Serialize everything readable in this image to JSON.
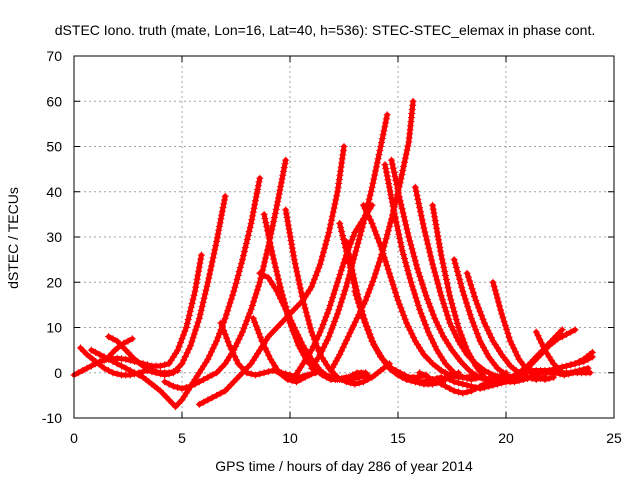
{
  "chart_data": {
    "type": "scatter",
    "title": "dSTEC Iono. truth (mate, Lon=16, Lat=40, h=536): STEC-STEC_elemax in phase cont.",
    "xlabel": "GPS time / hours of day 286 of year 2014",
    "ylabel": "dSTEC  / TECUs",
    "xlim": [
      0,
      25
    ],
    "ylim": [
      -10,
      70
    ],
    "xticks": [
      0,
      5,
      10,
      15,
      20,
      25
    ],
    "yticks": [
      -10,
      0,
      10,
      20,
      30,
      40,
      50,
      60,
      70
    ],
    "grid": true,
    "marker": "+",
    "color": "#ff0000",
    "series": [
      {
        "x": [
          0,
          0.4,
          0.8,
          1.2,
          1.6,
          2.0,
          2.4,
          2.8,
          3.2,
          3.6,
          4.0,
          4.4,
          4.8,
          5.2,
          5.6,
          5.9
        ],
        "y": [
          -0.5,
          0.5,
          1.5,
          2.5,
          3,
          3.2,
          3,
          2.5,
          2,
          1.5,
          1.5,
          2,
          5,
          10,
          18,
          26
        ]
      },
      {
        "x": [
          0.3,
          0.6,
          1.0,
          1.4,
          1.8,
          2.2,
          2.6,
          3.0,
          3.4,
          3.8,
          4.2,
          4.6,
          5.0,
          5.4,
          5.8,
          6.2,
          6.6,
          7.0
        ],
        "y": [
          5.5,
          4,
          2.5,
          1,
          0,
          -0.5,
          -0.5,
          0,
          0.5,
          0,
          -0.5,
          0,
          2,
          6,
          12,
          20,
          29,
          39
        ]
      },
      {
        "x": [
          0.8,
          1.2,
          1.6,
          2.0,
          2.4,
          2.8,
          3.2,
          3.6,
          4.0,
          4.4,
          4.7,
          5.0,
          5.4,
          5.8,
          6.2,
          6.6,
          7.0,
          7.4,
          7.8,
          8.2,
          8.6
        ],
        "y": [
          5,
          4,
          3,
          2,
          1,
          0,
          -1,
          -2.5,
          -4,
          -6,
          -7.5,
          -6,
          -3,
          0,
          3,
          7,
          12,
          18,
          25,
          33,
          43
        ]
      },
      {
        "x": [
          1.5,
          1.9,
          2.3,
          2.7
        ],
        "y": [
          3,
          5,
          6.5,
          7.5
        ]
      },
      {
        "x": [
          1.6,
          2.0,
          2.4,
          2.8,
          3.2,
          3.6,
          4.0,
          4.4,
          4.8
        ],
        "y": [
          8,
          7,
          5,
          3,
          1.5,
          0.5,
          0,
          0,
          0.5
        ]
      },
      {
        "x": [
          4.2,
          4.6,
          5.0,
          5.4,
          5.8,
          6.2,
          6.6,
          7.0,
          7.4,
          7.8,
          8.2,
          8.6,
          9.0,
          9.4,
          9.8
        ],
        "y": [
          -2,
          -3,
          -3.5,
          -3,
          -2,
          -1,
          0,
          2,
          5,
          9,
          14,
          20,
          28,
          37,
          47
        ]
      },
      {
        "x": [
          5.8,
          6.2,
          6.6,
          7.0,
          7.4,
          7.8,
          8.2,
          8.6,
          9.0,
          9.4,
          9.8,
          10.2,
          10.6,
          11.0,
          11.4,
          11.8,
          12.2,
          12.5
        ],
        "y": [
          -7,
          -6,
          -5,
          -4,
          -2,
          0,
          2,
          5,
          8,
          10,
          12,
          14,
          16,
          19,
          24,
          31,
          40,
          50
        ]
      },
      {
        "x": [
          6.8,
          7.2,
          7.6,
          8.0,
          8.4,
          8.8,
          9.2,
          9.6,
          10.0,
          10.4,
          10.8,
          11.2
        ],
        "y": [
          11,
          6,
          2,
          0,
          -0.5,
          0,
          0.5,
          0,
          -0.5,
          -1,
          -0.5,
          0
        ]
      },
      {
        "x": [
          8.3,
          8.7,
          9.1,
          9.5,
          9.9,
          10.3,
          10.7,
          11.1
        ],
        "y": [
          12,
          7,
          3,
          0,
          -1.5,
          -2,
          -1,
          0
        ]
      },
      {
        "x": [
          8.6,
          9.0,
          9.4,
          9.8,
          10.2,
          10.6,
          11.0,
          11.4,
          11.8,
          12.2,
          12.6
        ],
        "y": [
          22,
          21,
          18,
          14,
          10,
          6,
          3,
          0.5,
          -1,
          -1.5,
          -1
        ]
      },
      {
        "x": [
          8.8,
          9.2,
          9.6,
          10.0,
          10.4,
          10.8,
          11.2,
          11.6,
          12.0,
          12.4,
          12.8,
          13.2,
          13.6
        ],
        "y": [
          35,
          26,
          18,
          11,
          6,
          2.5,
          0.5,
          -0.5,
          -1,
          -1.5,
          -1.5,
          -1,
          -0.5
        ]
      },
      {
        "x": [
          9.8,
          10.2,
          10.6,
          11.0,
          11.4,
          11.8,
          12.2,
          12.6,
          13.0,
          13.4,
          13.8,
          14.2,
          14.6
        ],
        "y": [
          36,
          25,
          16,
          9,
          4,
          1,
          -1,
          -2,
          -2.5,
          -2,
          -1,
          0.5,
          2
        ]
      },
      {
        "x": [
          9.5,
          9.9,
          10.3,
          10.7,
          11.1,
          11.5,
          11.9,
          12.3,
          12.7,
          13.1,
          13.5
        ],
        "y": [
          19,
          13,
          8,
          4,
          1,
          -0.5,
          -1.5,
          -1.5,
          -1,
          0,
          0
        ]
      },
      {
        "x": [
          10.2,
          10.6,
          11.0,
          11.4,
          11.8,
          12.2,
          12.6,
          13.0,
          13.4,
          13.8
        ],
        "y": [
          -1,
          2,
          5,
          9,
          14,
          20,
          26,
          31,
          34,
          37
        ]
      },
      {
        "x": [
          11.0,
          11.4,
          11.8,
          12.2,
          12.6,
          13.0,
          13.4,
          13.8,
          14.2,
          14.5
        ],
        "y": [
          1,
          4,
          8,
          13,
          19,
          26,
          33,
          41,
          50,
          57
        ]
      },
      {
        "x": [
          11.9,
          12.3,
          12.7,
          13.1,
          13.5,
          13.9,
          14.3,
          14.7,
          15.1,
          15.5,
          15.7
        ],
        "y": [
          0.5,
          4,
          8,
          12,
          16,
          21,
          27,
          34,
          42,
          51,
          60
        ]
      },
      {
        "x": [
          12.3,
          12.7,
          13.1,
          13.5,
          13.9,
          14.3,
          14.7,
          15.1,
          15.5,
          15.9,
          16.3
        ],
        "y": [
          33,
          25,
          17,
          11,
          6,
          3,
          1,
          0,
          -1,
          -1,
          -0.5
        ]
      },
      {
        "x": [
          12.6,
          13.0,
          13.4,
          13.8,
          14.2,
          14.6,
          15.0,
          15.4,
          15.8,
          16.2,
          16.6,
          17.0
        ],
        "y": [
          29,
          20,
          12,
          7,
          3.5,
          1,
          -0.5,
          -1.5,
          -2,
          -2,
          -1.5,
          -1
        ]
      },
      {
        "x": [
          13.0,
          13.4,
          13.8,
          14.2,
          14.6,
          15.0,
          15.4,
          15.8,
          16.2,
          16.6,
          17.0,
          17.4,
          17.8
        ],
        "y": [
          18,
          12,
          7,
          3.5,
          1,
          -0.5,
          -1.5,
          -2,
          -2.5,
          -2.5,
          -2,
          -1,
          0
        ]
      },
      {
        "x": [
          13.4,
          13.8,
          14.2,
          14.6,
          15.0,
          15.4,
          15.8,
          16.2,
          16.6,
          17.0,
          17.4,
          17.8,
          18.2,
          18.6
        ],
        "y": [
          37,
          33,
          28,
          22,
          16,
          11,
          7,
          4,
          2,
          0.5,
          -0.5,
          -1,
          -1,
          -0.5
        ]
      },
      {
        "x": [
          14.4,
          14.8,
          15.2,
          15.6,
          16.0,
          16.4,
          16.8,
          17.2,
          17.6,
          18.0,
          18.4,
          18.8
        ],
        "y": [
          46,
          36,
          27,
          20,
          14,
          9,
          5,
          2,
          0,
          -1,
          -1.5,
          -1
        ]
      },
      {
        "x": [
          14.7,
          15.1,
          15.5,
          15.9,
          16.3,
          16.7,
          17.1,
          17.5,
          17.9,
          18.3,
          18.7,
          19.1,
          19.5
        ],
        "y": [
          47,
          38,
          30,
          23,
          17,
          12,
          8,
          5,
          2.5,
          0.5,
          -1,
          -1.5,
          -1
        ]
      },
      {
        "x": [
          15.8,
          16.2,
          16.6,
          17.0,
          17.4,
          17.8,
          18.2,
          18.6,
          19.0,
          19.4,
          19.8,
          20.2
        ],
        "y": [
          41,
          32,
          24,
          17,
          11,
          7,
          4,
          2,
          0.5,
          -0.5,
          -1,
          -1
        ]
      },
      {
        "x": [
          16.6,
          17.0,
          17.4,
          17.8,
          18.2,
          18.6,
          19.0,
          19.4,
          19.8,
          20.2,
          20.6
        ],
        "y": [
          37,
          26,
          17,
          10,
          5,
          1.5,
          -1,
          -2,
          -2,
          -1.5,
          -1
        ]
      },
      {
        "x": [
          17.6,
          18.0,
          18.4,
          18.8,
          19.2,
          19.6,
          20.0,
          20.4,
          20.8,
          21.2
        ],
        "y": [
          25,
          18,
          12,
          7,
          3.5,
          1,
          -0.5,
          -1.5,
          -1.5,
          -1
        ]
      },
      {
        "x": [
          18.2,
          18.6,
          19.0,
          19.4,
          19.8,
          20.2,
          20.6,
          21.0,
          21.4,
          21.8
        ],
        "y": [
          22,
          16,
          11,
          7,
          4,
          1.5,
          0,
          -1,
          -1.5,
          -1
        ]
      },
      {
        "x": [
          19.4,
          19.8,
          20.2,
          20.6,
          21.0,
          21.4,
          21.8,
          22.2
        ],
        "y": [
          20,
          13,
          7,
          3,
          0.5,
          -1,
          -1.5,
          -1
        ]
      },
      {
        "x": [
          16.0,
          16.4,
          16.8,
          17.2,
          17.6,
          18.0,
          18.4,
          18.8,
          19.2,
          19.6,
          20.0
        ],
        "y": [
          0,
          -1,
          -2,
          -3,
          -4,
          -4.5,
          -4,
          -3,
          -2,
          -1,
          0
        ]
      },
      {
        "x": [
          17.2,
          17.6,
          18.0,
          18.4,
          18.8,
          19.2,
          19.6,
          20.0,
          20.4,
          20.8,
          21.2,
          21.6,
          22.0,
          22.4,
          22.8,
          23.2
        ],
        "y": [
          -1,
          -2,
          -2.5,
          -3,
          -3.5,
          -3,
          -2.5,
          -2,
          -1,
          0,
          2,
          4,
          6,
          7.5,
          8.5,
          9.5
        ]
      },
      {
        "x": [
          19.6,
          20.0,
          20.4,
          20.8,
          21.2,
          21.6,
          22.0,
          22.4,
          22.8,
          23.2,
          23.6,
          24.0
        ],
        "y": [
          -1,
          -2,
          -2,
          -1.5,
          -1,
          0,
          0.5,
          1,
          1.5,
          2,
          3,
          4.5
        ]
      },
      {
        "x": [
          20.2,
          20.6,
          21.0,
          21.4,
          21.8,
          22.2,
          22.6
        ],
        "y": [
          -1,
          0,
          1.5,
          3.5,
          5.5,
          7.5,
          9.5
        ]
      },
      {
        "x": [
          21.4,
          21.8,
          22.2,
          22.6,
          23.0,
          23.4,
          23.8
        ],
        "y": [
          9,
          5,
          2,
          0,
          0,
          0.5,
          1
        ]
      },
      {
        "x": [
          20.8,
          21.2,
          21.6,
          22.0,
          22.4,
          22.8,
          23.2,
          23.6,
          24.0
        ],
        "y": [
          0,
          0.5,
          0.5,
          0.5,
          1,
          1.5,
          2,
          2.5,
          3.5
        ]
      },
      {
        "x": [
          21.5,
          21.9,
          22.3,
          22.7,
          23.1,
          23.5,
          23.9
        ],
        "y": [
          0,
          0,
          0,
          -0.5,
          0,
          0,
          0
        ]
      }
    ]
  }
}
